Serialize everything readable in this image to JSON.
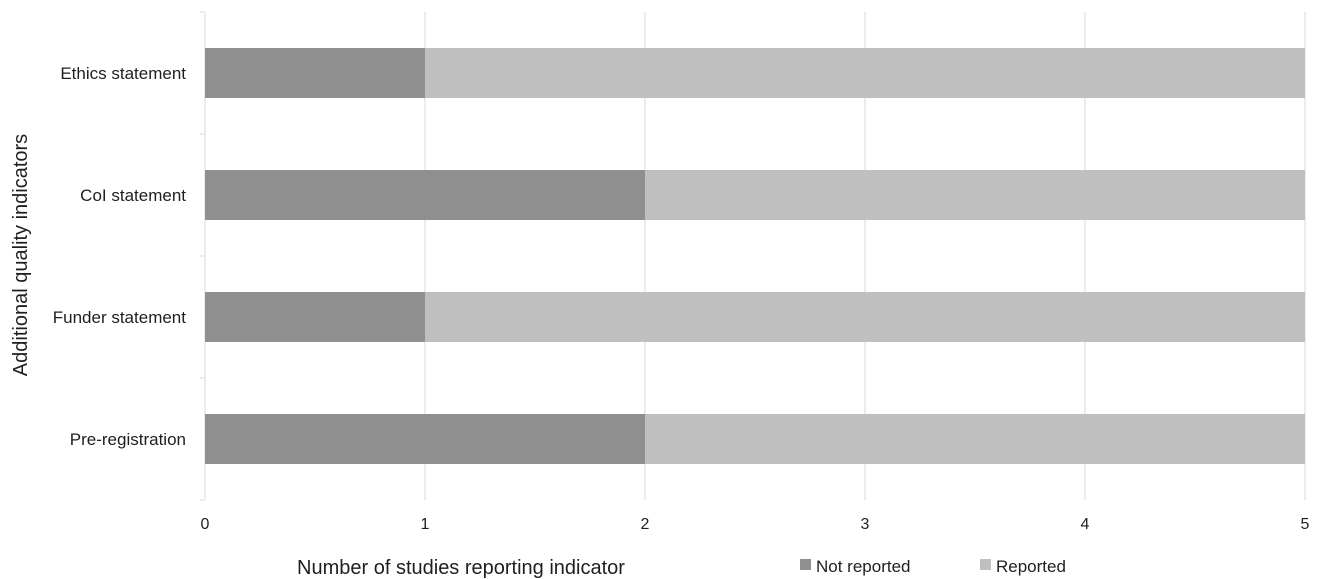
{
  "chart_data": {
    "type": "bar",
    "orientation": "horizontal",
    "stacked": true,
    "categories": [
      "Ethics statement",
      "CoI statement",
      "Funder statement",
      "Pre-registration"
    ],
    "series": [
      {
        "name": "Not reported",
        "values": [
          1,
          2,
          1,
          2
        ],
        "color": "#8f8f8f"
      },
      {
        "name": "Reported",
        "values": [
          4,
          3,
          4,
          3
        ],
        "color": "#bfbfbf"
      }
    ],
    "xlabel": "Number of studies reporting indicator",
    "ylabel": "Additional quality indicators",
    "xlim": [
      0,
      5
    ],
    "xticks": [
      "0",
      "1",
      "2",
      "3",
      "4",
      "5"
    ],
    "grid": "vertical",
    "legend_position": "bottom-right"
  }
}
